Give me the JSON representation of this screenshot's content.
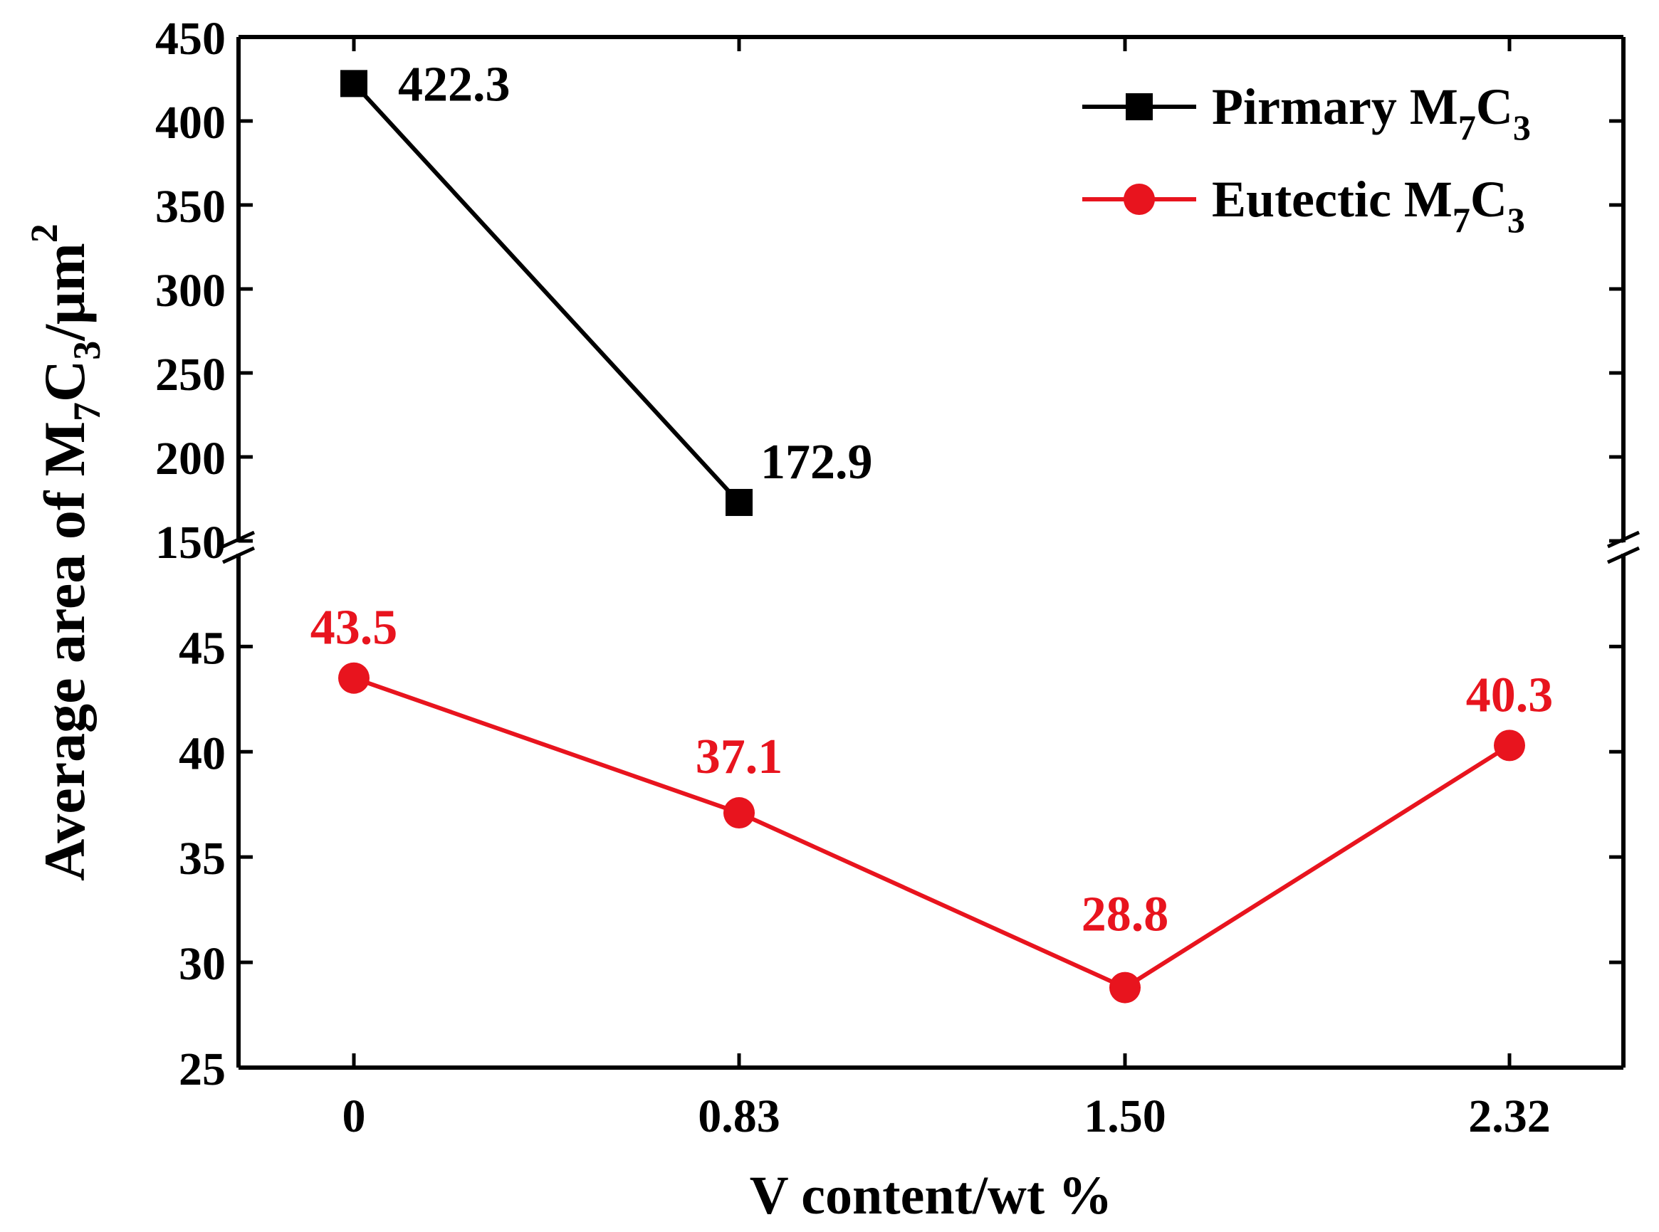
{
  "chart_data": {
    "type": "line",
    "x": [
      "0",
      "0.83",
      "1.50",
      "2.32"
    ],
    "xlabel": "V content/wt %",
    "ylabel": {
      "prefix": "Average area of  M",
      "sub1": "7",
      "mid": "C",
      "sub2": "3",
      "unit": "/μm",
      "sup": "2"
    },
    "axis_break": true,
    "upper_panel": {
      "ylim": [
        150,
        450
      ],
      "yticks": [
        "150",
        "200",
        "250",
        "300",
        "350",
        "400",
        "450"
      ]
    },
    "lower_panel": {
      "ylim": [
        25,
        49
      ],
      "yticks": [
        "25",
        "30",
        "35",
        "40",
        "45"
      ]
    },
    "series": [
      {
        "name": "Pirmary M7C3",
        "legend": {
          "main": "Pirmary M",
          "sub1": "7",
          "mid": "C",
          "sub2": "3"
        },
        "color": "#000000",
        "marker": "square",
        "panel": "upper",
        "values": [
          422.3,
          172.9,
          null,
          null
        ],
        "labels": [
          "422.3",
          "172.9",
          "",
          ""
        ]
      },
      {
        "name": "Eutectic M7C3",
        "legend": {
          "main": "Eutectic M",
          "sub1": "7",
          "mid": "C",
          "sub2": "3"
        },
        "color": "#e8141e",
        "marker": "circle",
        "panel": "lower",
        "values": [
          43.5,
          37.1,
          28.8,
          40.3
        ],
        "labels": [
          "43.5",
          "37.1",
          "28.8",
          "40.3"
        ]
      }
    ],
    "legend_position": "top-right",
    "grid": false
  }
}
